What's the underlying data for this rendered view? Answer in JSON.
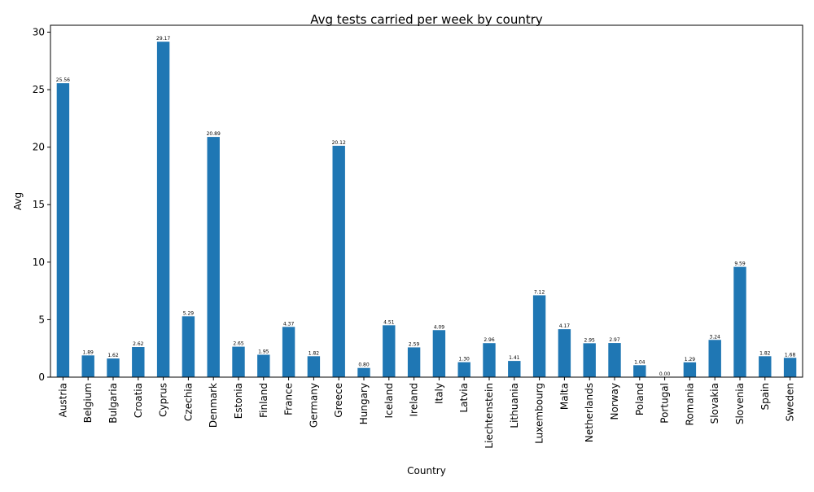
{
  "chart_data": {
    "type": "bar",
    "title": "Avg tests carried per week by country",
    "xlabel": "Country",
    "ylabel": "Avg",
    "ylim": [
      0,
      30.6
    ],
    "yticks": [
      0,
      5,
      10,
      15,
      20,
      25,
      30
    ],
    "grid": false,
    "bar_color": "#1f77b4",
    "categories": [
      "Austria",
      "Belgium",
      "Bulgaria",
      "Croatia",
      "Cyprus",
      "Czechia",
      "Denmark",
      "Estonia",
      "Finland",
      "France",
      "Germany",
      "Greece",
      "Hungary",
      "Iceland",
      "Ireland",
      "Italy",
      "Latvia",
      "Liechtenstein",
      "Lithuania",
      "Luxembourg",
      "Malta",
      "Netherlands",
      "Norway",
      "Poland",
      "Portugal",
      "Romania",
      "Slovakia",
      "Slovenia",
      "Spain",
      "Sweden"
    ],
    "values": [
      25.56,
      1.89,
      1.62,
      2.62,
      29.17,
      5.29,
      20.89,
      2.65,
      1.95,
      4.37,
      1.82,
      20.12,
      0.8,
      4.51,
      2.59,
      4.09,
      1.3,
      2.96,
      1.41,
      7.12,
      4.17,
      2.95,
      2.97,
      1.04,
      0.0,
      1.29,
      3.24,
      9.59,
      1.82,
      1.68
    ],
    "data_labels": [
      "25.56",
      "1.89",
      "1.62",
      "2.62",
      "29.17",
      "5.29",
      "20.89",
      "2.65",
      "1.95",
      "4.37",
      "1.82",
      "20.12",
      "0.80",
      "4.51",
      "2.59",
      "4.09",
      "1.30",
      "2.96",
      "1.41",
      "7.12",
      "4.17",
      "2.95",
      "2.97",
      "1.04",
      "0.00",
      "1.29",
      "3.24",
      "9.59",
      "1.82",
      "1.68"
    ]
  }
}
